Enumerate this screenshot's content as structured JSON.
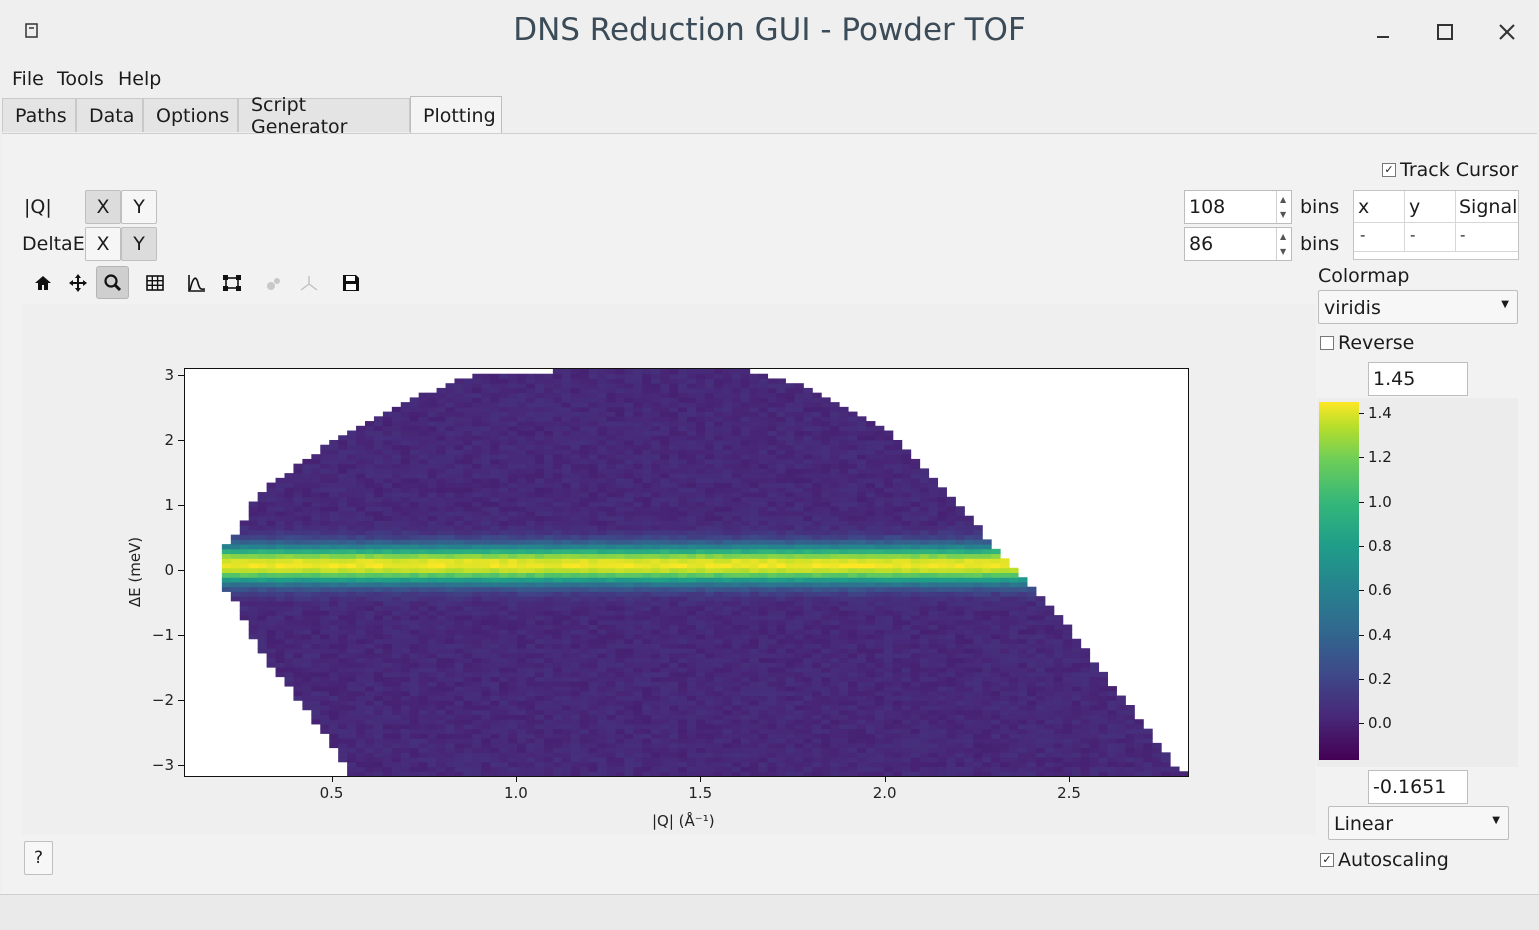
{
  "window": {
    "title": "DNS Reduction GUI - Powder TOF"
  },
  "menu": [
    "File",
    "Tools",
    "Help"
  ],
  "tabs": [
    "Paths",
    "Data",
    "Options",
    "Script Generator",
    "Plotting"
  ],
  "active_tab": "Plotting",
  "axes_select": {
    "q_label": "|Q|",
    "de_label": "DeltaE",
    "x_label": "X",
    "y_label": "Y",
    "q_selected": "X",
    "de_selected": "Y"
  },
  "bins": {
    "q_value": "108",
    "de_value": "86",
    "unit": "bins"
  },
  "track_cursor": {
    "label": "Track Cursor",
    "checked": true,
    "headers": [
      "x",
      "y",
      "Signal"
    ],
    "values": [
      "-",
      "-",
      "-"
    ]
  },
  "toolbar_icons": [
    "home-icon",
    "pan-icon",
    "zoom-icon",
    "grid-icon",
    "line-plot-icon",
    "fit-icon",
    "disabled-peaks-icon",
    "disabled-axes-icon",
    "save-icon"
  ],
  "colormap": {
    "label": "Colormap",
    "value": "viridis",
    "reverse_label": "Reverse",
    "reverse": false,
    "max": "1.45",
    "min": "-0.1651",
    "norm": "Linear",
    "autoscale_label": "Autoscaling",
    "autoscale": true,
    "ticks": [
      "1.4",
      "1.2",
      "1.0",
      "0.8",
      "0.6",
      "0.4",
      "0.2",
      "0.0"
    ]
  },
  "help_button": "?",
  "chart_data": {
    "type": "heatmap",
    "xlabel": "|Q| (Å⁻¹)",
    "ylabel": "ΔE (meV)",
    "xlim": [
      0.1,
      2.82
    ],
    "ylim": [
      -3.15,
      3.1
    ],
    "xticks": [
      0.5,
      1.0,
      1.5,
      2.0,
      2.5
    ],
    "xtick_labels": [
      "0.5",
      "1.0",
      "1.5",
      "2.0",
      "2.5"
    ],
    "yticks": [
      3,
      2,
      1,
      0,
      -1,
      -2,
      -3
    ],
    "ytick_labels": [
      "3",
      "2",
      "1",
      "0",
      "−1",
      "−2",
      "−3"
    ],
    "colormap": "viridis",
    "color_range": [
      -0.1651,
      1.45
    ],
    "elastic_line": {
      "center_meV": 0.1,
      "peak_intensity": 1.4
    },
    "coverage_boundary_upper": [
      [
        0.22,
        0.4
      ],
      [
        0.3,
        1.2
      ],
      [
        0.5,
        2.0
      ],
      [
        0.7,
        2.6
      ],
      [
        0.9,
        3.05
      ],
      [
        1.6,
        3.1
      ],
      [
        1.8,
        2.8
      ],
      [
        2.0,
        2.2
      ],
      [
        2.2,
        1.0
      ],
      [
        2.35,
        0.0
      ],
      [
        2.5,
        -0.9
      ],
      [
        2.65,
        -2.0
      ],
      [
        2.8,
        -3.1
      ]
    ],
    "coverage_boundary_lower": [
      [
        0.22,
        -0.3
      ],
      [
        0.3,
        -1.2
      ],
      [
        0.45,
        -2.3
      ],
      [
        0.55,
        -3.1
      ]
    ]
  }
}
